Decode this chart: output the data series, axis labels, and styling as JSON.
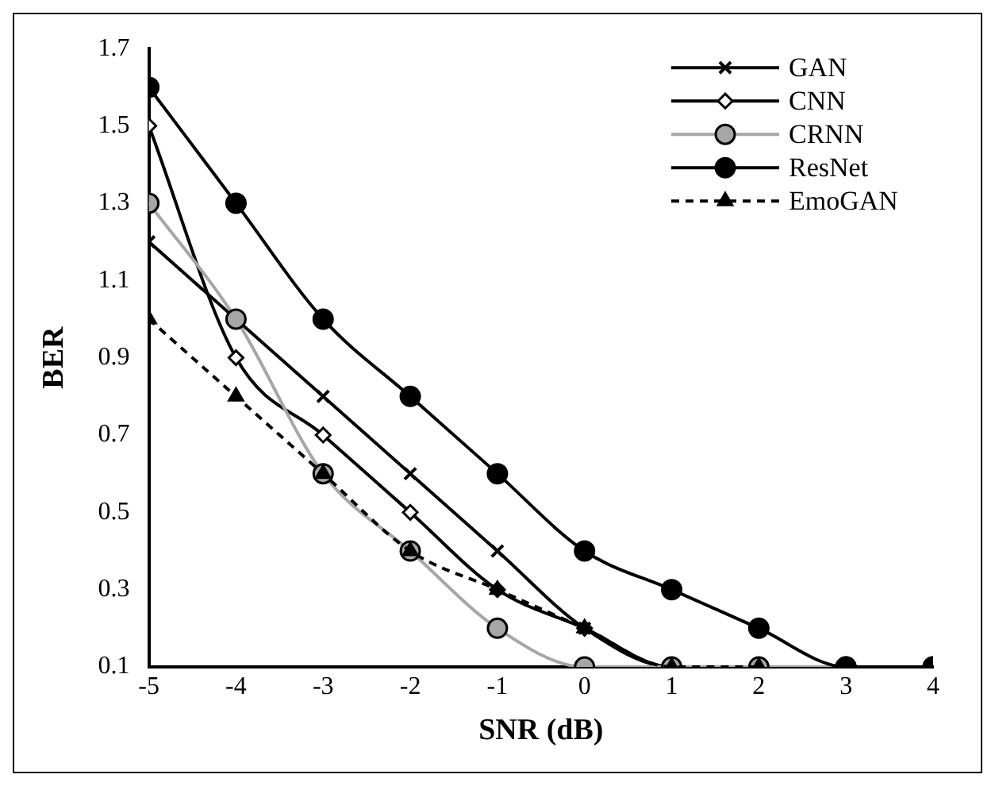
{
  "chart_data": {
    "type": "line",
    "xlabel": "SNR (dB)",
    "ylabel": "BER",
    "x": [
      -5,
      -4,
      -3,
      -2,
      -1,
      0,
      1,
      2,
      3,
      4
    ],
    "xlim": [
      -5,
      4
    ],
    "xticks": [
      -5,
      -4,
      -3,
      -2,
      -1,
      0,
      1,
      2,
      3,
      4
    ],
    "ylim": [
      0.1,
      1.7
    ],
    "yticks": [
      0.1,
      0.3,
      0.5,
      0.7,
      0.9,
      1.1,
      1.3,
      1.5,
      1.7
    ],
    "grid": false,
    "legend": "top right",
    "series": [
      {
        "name": "GAN",
        "color": "#000000",
        "marker": "cross",
        "line_style": "solid",
        "values": [
          1.2,
          1.0,
          0.8,
          0.6,
          0.4,
          0.2,
          0.1,
          0.1,
          0.1,
          0.1
        ]
      },
      {
        "name": "CNN",
        "color": "#000000",
        "marker": "diamond",
        "line_style": "solid",
        "values": [
          1.5,
          0.9,
          0.7,
          0.5,
          0.3,
          0.2,
          0.1,
          0.1,
          0.1,
          0.1
        ]
      },
      {
        "name": "CRNN",
        "color": "#a6a6a6",
        "marker": "circle",
        "line_style": "solid",
        "values": [
          1.3,
          1.0,
          0.6,
          0.4,
          0.2,
          0.1,
          0.1,
          0.1,
          0.1,
          0.1
        ]
      },
      {
        "name": "ResNet",
        "color": "#000000",
        "marker": "circle",
        "line_style": "solid",
        "values": [
          1.6,
          1.3,
          1.0,
          0.8,
          0.6,
          0.4,
          0.3,
          0.2,
          0.1,
          0.1
        ]
      },
      {
        "name": "EmoGAN",
        "color": "#000000",
        "marker": "triangle",
        "line_style": "dashed",
        "values": [
          1.0,
          0.8,
          0.6,
          0.4,
          0.3,
          0.2,
          0.1,
          0.1,
          null,
          null
        ]
      }
    ]
  }
}
